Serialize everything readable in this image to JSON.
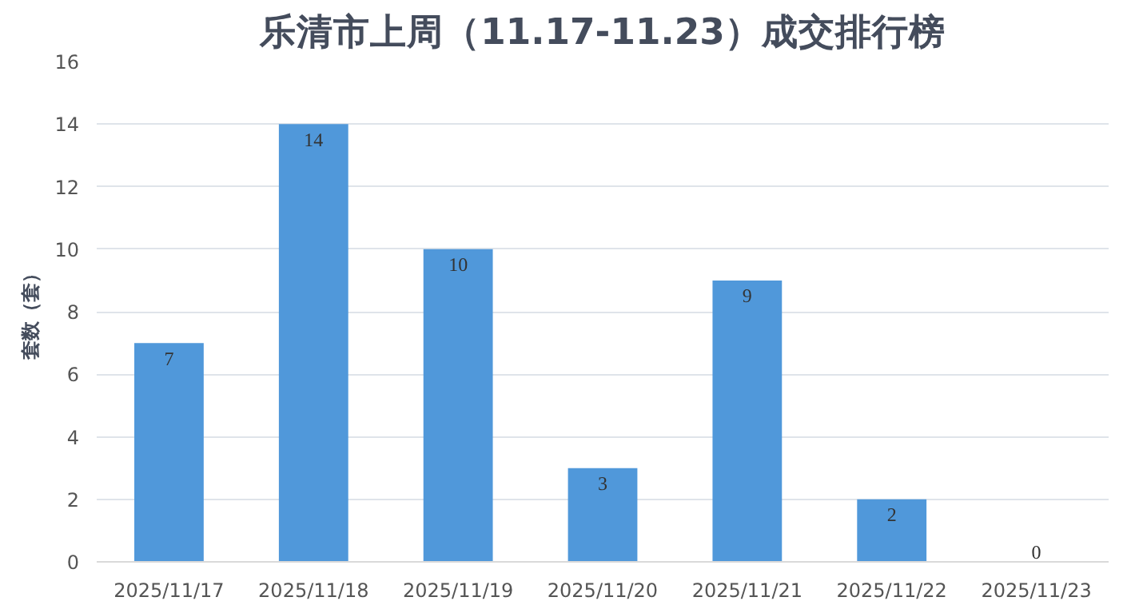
{
  "chart_data": {
    "type": "bar",
    "title": "乐清市上周（11.17-11.23）成交排行榜",
    "ylabel": "套数（套）",
    "categories": [
      "2025/11/17",
      "2025/11/18",
      "2025/11/19",
      "2025/11/20",
      "2025/11/21",
      "2025/11/22",
      "2025/11/23"
    ],
    "values": [
      7,
      14,
      10,
      3,
      9,
      2,
      0
    ],
    "color": "#5098da",
    "ylim": [
      0,
      16
    ],
    "yticks": [
      0,
      2,
      4,
      6,
      8,
      10,
      12,
      14,
      16
    ],
    "grid": "y",
    "data_labels": true
  }
}
